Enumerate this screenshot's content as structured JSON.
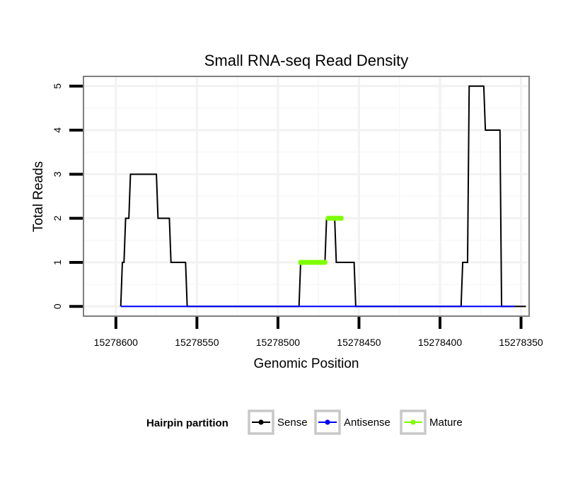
{
  "chart_data": {
    "type": "line",
    "title": "Small RNA-seq Read Density",
    "xlabel": "Genomic Position",
    "ylabel": "Total Reads",
    "xlim": [
      15278620,
      15278345
    ],
    "x_reversed": true,
    "ylim": [
      -0.22,
      5.22
    ],
    "x_ticks": [
      15278600,
      15278550,
      15278500,
      15278450,
      15278400,
      15278350
    ],
    "x_tick_labels": [
      "15278600",
      "15278550",
      "15278500",
      "15278450",
      "15278400",
      "15278350"
    ],
    "y_ticks": [
      0,
      1,
      2,
      3,
      4,
      5
    ],
    "y_tick_labels": [
      "0",
      "1",
      "2",
      "3",
      "4",
      "5"
    ],
    "grid": true,
    "legend": {
      "title": "Hairpin partition",
      "position": "bottom",
      "entries": [
        {
          "name": "Sense",
          "color": "#000000"
        },
        {
          "name": "Antisense",
          "color": "#0000ff"
        },
        {
          "name": "Mature",
          "color": "#7fff00"
        }
      ]
    },
    "series": [
      {
        "name": "Sense",
        "color": "#000000",
        "x": [
          15278597,
          15278596,
          15278595,
          15278594,
          15278592,
          15278591,
          15278575,
          15278574,
          15278567,
          15278566,
          15278557,
          15278556,
          15278487,
          15278486,
          15278471,
          15278470,
          15278465,
          15278464,
          15278453,
          15278452,
          15278387,
          15278386,
          15278383,
          15278382,
          15278373,
          15278372,
          15278363,
          15278362,
          15278355,
          15278354,
          15278347
        ],
        "values": [
          0,
          1,
          1,
          2,
          2,
          3,
          3,
          2,
          2,
          1,
          1,
          0,
          0,
          1,
          1,
          2,
          2,
          1,
          1,
          0,
          0,
          1,
          1,
          5,
          5,
          4,
          4,
          0,
          0,
          0,
          0
        ]
      },
      {
        "name": "Antisense",
        "color": "#0000ff",
        "x": [
          15278597,
          15278556,
          15278487,
          15278452,
          15278387,
          15278354
        ],
        "values": [
          0,
          0,
          0,
          0,
          0,
          0
        ]
      },
      {
        "name": "Mature",
        "color": "#7fff00",
        "segments": [
          {
            "x": [
              15278486,
              15278471
            ],
            "values": [
              1,
              1
            ]
          },
          {
            "x": [
              15278469,
              15278461
            ],
            "values": [
              2,
              2
            ]
          }
        ]
      }
    ]
  }
}
